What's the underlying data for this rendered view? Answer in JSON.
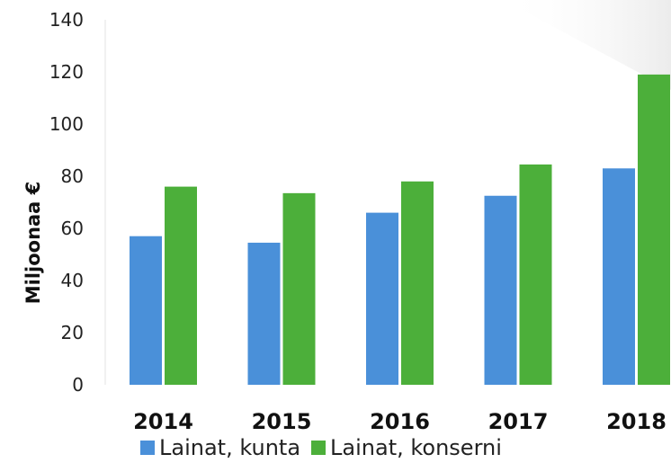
{
  "chart_data": {
    "type": "bar",
    "title": "",
    "xlabel": "",
    "ylabel": "Miljoonaa €",
    "ylim": [
      0,
      140
    ],
    "yticks": [
      0,
      20,
      40,
      60,
      80,
      100,
      120,
      140
    ],
    "grid": false,
    "legend_position": "bottom",
    "categories": [
      "2014",
      "2015",
      "2016",
      "2017",
      "2018"
    ],
    "series": [
      {
        "name": "Lainat, kunta",
        "color": "#4a90d9",
        "values": [
          57,
          54.5,
          66,
          72.5,
          83
        ]
      },
      {
        "name": "Lainat, konserni",
        "color": "#4caf3a",
        "values": [
          76,
          73.5,
          78,
          84.5,
          119
        ]
      }
    ]
  }
}
